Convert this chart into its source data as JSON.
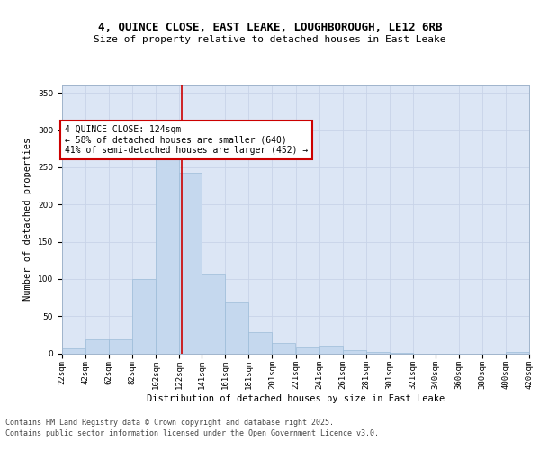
{
  "title_line1": "4, QUINCE CLOSE, EAST LEAKE, LOUGHBOROUGH, LE12 6RB",
  "title_line2": "Size of property relative to detached houses in East Leake",
  "xlabel": "Distribution of detached houses by size in East Leake",
  "ylabel": "Number of detached properties",
  "bg_color": "#dce6f5",
  "bar_color": "#c5d8ee",
  "bar_edge_color": "#9dbcd8",
  "vline_color": "#cc0000",
  "vline_x": 124,
  "annotation_text": "4 QUINCE CLOSE: 124sqm\n← 58% of detached houses are smaller (640)\n41% of semi-detached houses are larger (452) →",
  "annotation_box_facecolor": "#ffffff",
  "annotation_box_edgecolor": "#cc0000",
  "footer_line1": "Contains HM Land Registry data © Crown copyright and database right 2025.",
  "footer_line2": "Contains public sector information licensed under the Open Government Licence v3.0.",
  "bins": [
    22,
    42,
    62,
    82,
    102,
    122,
    141,
    161,
    181,
    201,
    221,
    241,
    261,
    281,
    301,
    321,
    340,
    360,
    380,
    400,
    420
  ],
  "bin_labels": [
    "22sqm",
    "42sqm",
    "62sqm",
    "82sqm",
    "102sqm",
    "122sqm",
    "141sqm",
    "161sqm",
    "181sqm",
    "201sqm",
    "221sqm",
    "241sqm",
    "261sqm",
    "281sqm",
    "301sqm",
    "321sqm",
    "340sqm",
    "360sqm",
    "380sqm",
    "400sqm",
    "420sqm"
  ],
  "counts": [
    7,
    19,
    19,
    100,
    275,
    243,
    107,
    68,
    29,
    14,
    8,
    10,
    4,
    2,
    1,
    0,
    0,
    0,
    0,
    2
  ],
  "ylim": [
    0,
    360
  ],
  "yticks": [
    0,
    50,
    100,
    150,
    200,
    250,
    300,
    350
  ],
  "grid_color": "#c8d4e8",
  "title1_fontsize": 9,
  "title2_fontsize": 8,
  "axis_label_fontsize": 7.5,
  "tick_fontsize": 6.5,
  "annotation_fontsize": 7,
  "footer_fontsize": 6
}
